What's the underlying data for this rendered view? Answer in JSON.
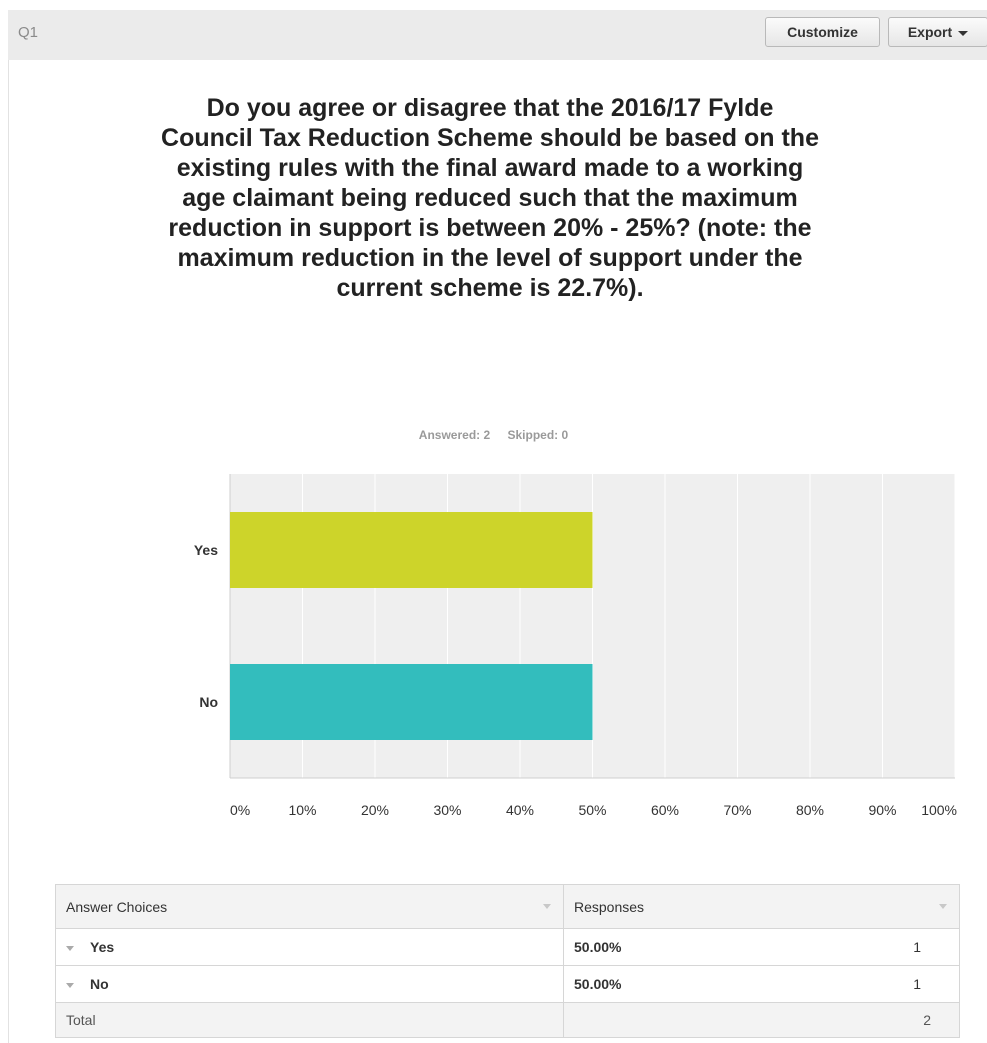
{
  "header": {
    "question_number": "Q1",
    "customize_label": "Customize",
    "export_label": "Export"
  },
  "question": {
    "text": "Do you agree or disagree that the 2016/17 Fylde Council Tax Reduction Scheme should be based on the existing rules with the final award made to a working age claimant being reduced such that the maximum reduction in support is between 20% - 25%? (note: the maximum reduction in the level of support under the current scheme is 22.7%).",
    "answered": "Answered: 2",
    "skipped": "Skipped: 0"
  },
  "chart_data": {
    "type": "bar",
    "orientation": "horizontal",
    "categories": [
      "Yes",
      "No"
    ],
    "values": [
      50,
      50
    ],
    "colors": [
      "#cdd42a",
      "#33bdbd"
    ],
    "xlim": [
      0,
      100
    ],
    "xticks": [
      "0%",
      "10%",
      "20%",
      "30%",
      "40%",
      "50%",
      "60%",
      "70%",
      "80%",
      "90%",
      "100%"
    ],
    "grid": true,
    "title": "",
    "xlabel": "",
    "ylabel": ""
  },
  "table": {
    "headers": [
      "Answer Choices",
      "Responses"
    ],
    "rows": [
      {
        "choice": "Yes",
        "percent": "50.00%",
        "count": "1"
      },
      {
        "choice": "No",
        "percent": "50.00%",
        "count": "1"
      }
    ],
    "total_label": "Total",
    "total_count": "2"
  }
}
